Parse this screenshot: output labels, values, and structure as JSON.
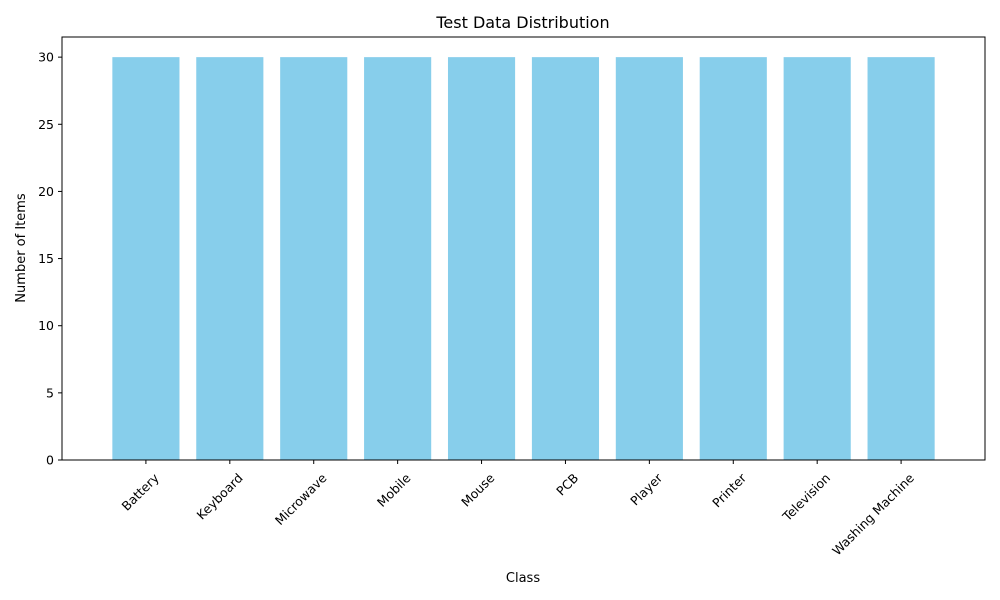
{
  "chart_data": {
    "type": "bar",
    "title": "Test Data Distribution",
    "xlabel": "Class",
    "ylabel": "Number of Items",
    "categories": [
      "Battery",
      "Keyboard",
      "Microwave",
      "Mobile",
      "Mouse",
      "PCB",
      "Player",
      "Printer",
      "Television",
      "Washing Machine"
    ],
    "values": [
      30,
      30,
      30,
      30,
      30,
      30,
      30,
      30,
      30,
      30
    ],
    "ylim": [
      0,
      31.5
    ],
    "yticks": [
      0,
      5,
      10,
      15,
      20,
      25,
      30
    ],
    "xtick_rotation": 45,
    "grid": false,
    "bar_color": "#87ceeb",
    "axis_color": "#000000"
  }
}
